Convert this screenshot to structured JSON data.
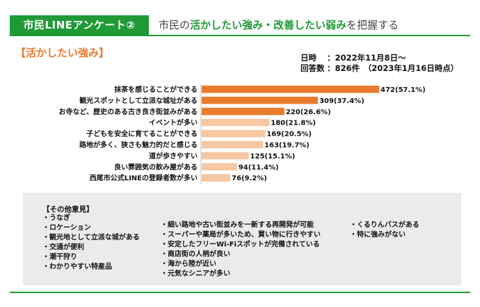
{
  "header": {
    "badge": "市民LINEアンケート②",
    "title_parts": [
      "市民の",
      "活かしたい強み",
      "・",
      "改善したい弱み",
      "を把握する"
    ]
  },
  "section_heading": "【活かしたい強み】",
  "meta": {
    "date_key": "日時",
    "date_val": "：2022年11月8日～",
    "count_key": "回答数",
    "count_val": "：826件　（2023年1月16日時点）"
  },
  "chart_data": {
    "type": "bar",
    "orientation": "horizontal",
    "categories": [
      "抹茶を感じることができる",
      "観光スポットとして立派な城址がある",
      "お寺など、歴史のある古き良き街並みがある",
      "イベントが多い",
      "子どもを安全に育てることができる",
      "路地が多く、狭さも魅力的だと感じる",
      "道が歩きやすい",
      "良い雰囲気の飲み屋がある",
      "西尾市公式LINEの登録者数が多い"
    ],
    "values": [
      472,
      309,
      220,
      180,
      169,
      163,
      125,
      94,
      76
    ],
    "labels": [
      "472(57.1%)",
      "309(37.4%)",
      "220(26.6%)",
      "180(21.8%)",
      "169(20.5%)",
      "163(19.7%)",
      "125(15.1%)",
      "94(11.4%)",
      "76(9.2%)"
    ],
    "highlight_count": 3,
    "colors": {
      "highlight": "#ea7b2e",
      "normal": "#f5c7a3"
    },
    "xlim": [
      0,
      472
    ]
  },
  "others": {
    "title": "【その他意見】",
    "col1": [
      "・うなぎ",
      "・ロケーション",
      "・観光地として立派な城がある",
      "・交通が便利",
      "・潮干狩り",
      "・わかりやすい特産品"
    ],
    "col2": [
      "・細い路地や古い街並みを一新する再開発が可能",
      "・スーパーや薬局が多いため、買い物に行きやすい",
      "・安定したフリーWi-Fiスポットが完備されている",
      "・商店街の人柄が良い",
      "・海から陸が近い",
      "・元気なシニアが多い"
    ],
    "col3": [
      "・くるりんバスがある",
      "・特に強みがない"
    ]
  }
}
